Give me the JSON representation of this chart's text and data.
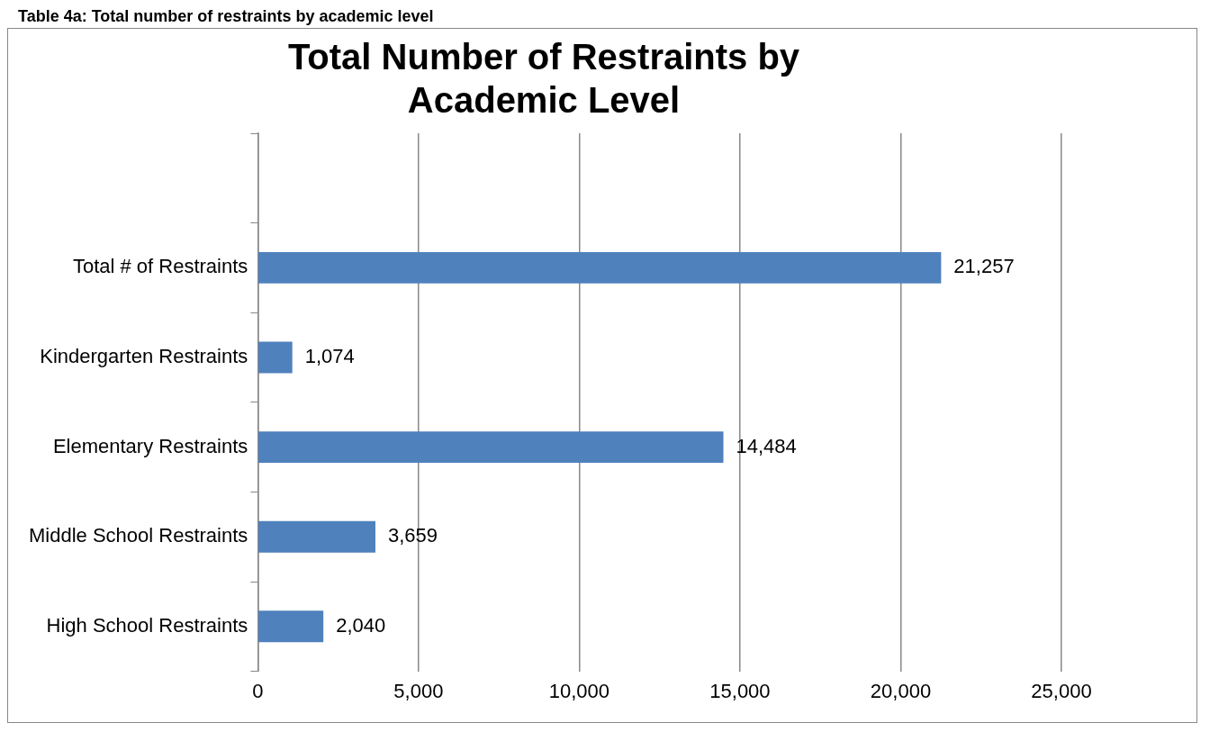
{
  "chart_data": {
    "type": "bar",
    "orientation": "horizontal",
    "title": "Total Number of Restraints by Academic Level",
    "annotations": [
      "Table 4a: Total number of restraints by academic level"
    ],
    "categories": [
      null,
      "Total # of Restraints",
      "Kindergarten Restraints",
      "Elementary Restraints",
      "Middle School Restraints",
      "High School Restraints"
    ],
    "values": [
      null,
      21257,
      1074,
      14484,
      3659,
      2040
    ],
    "value_labels": [
      null,
      "21,257",
      "1,074",
      "14,484",
      "3,659",
      "2,040"
    ],
    "color": "#4f81bd",
    "xlim": [
      0,
      25000
    ],
    "xticks": [
      0,
      {
        "value": 5000,
        "label": "5,000"
      },
      {
        "value": 10000,
        "label": "10,000"
      },
      {
        "value": 15000,
        "label": "15,000"
      },
      {
        "value": 20000,
        "label": "20,000"
      },
      {
        "value": 25000,
        "label": "25,000"
      }
    ],
    "grid": "x",
    "legend": false
  }
}
